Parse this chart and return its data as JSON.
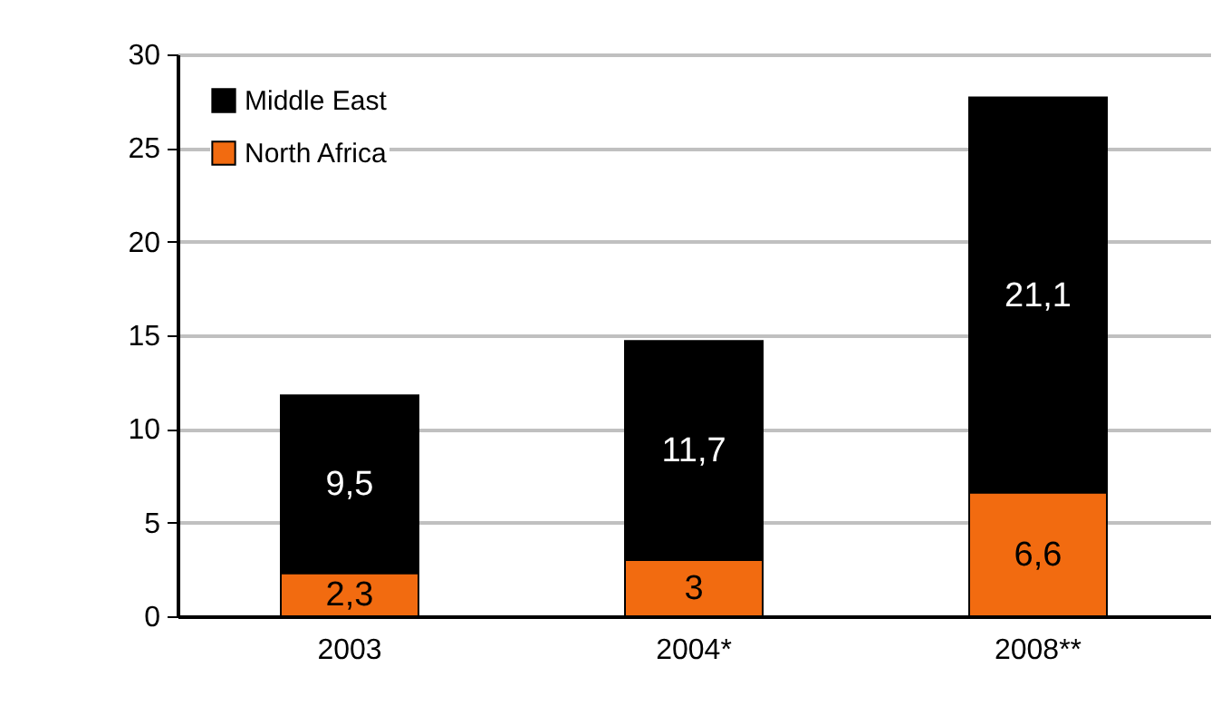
{
  "chart_data": {
    "type": "bar",
    "stacked": true,
    "categories": [
      "2003",
      "2004*",
      "2008**"
    ],
    "series": [
      {
        "name": "North Africa",
        "color": "#f26b10",
        "values": [
          2.3,
          3,
          6.6
        ],
        "value_labels": [
          "2,3",
          "3",
          "6,6"
        ]
      },
      {
        "name": "Middle East",
        "color": "#000000",
        "values": [
          9.5,
          11.7,
          21.1
        ],
        "value_labels": [
          "9,5",
          "11,7",
          "21,1"
        ]
      }
    ],
    "ylim": [
      0,
      30
    ],
    "yticks": [
      0,
      5,
      10,
      15,
      20,
      25,
      30
    ],
    "grid": "y",
    "legend": "top left"
  }
}
